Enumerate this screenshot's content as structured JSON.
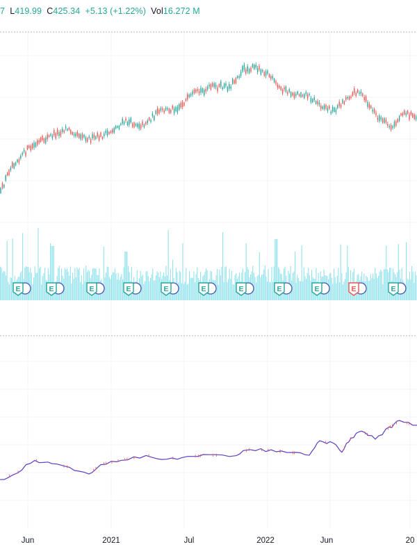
{
  "ohlc_legend": {
    "o_fragment": "7",
    "low_label": "L",
    "low_value": "419.99",
    "close_label": "C",
    "close_value": "425.34",
    "change": "+5.13",
    "change_pct": "(+1.22%)",
    "volume_label": "Vol",
    "volume_value": "16.272",
    "volume_unit": "M"
  },
  "x_axis_labels": [
    "Jun",
    "2021",
    "Jul",
    "2022",
    "Jun",
    "20"
  ],
  "earnings_badges": [
    {
      "icon": "earnings-icon",
      "letter": "E",
      "color": "#26a69a"
    },
    {
      "icon": "earnings-icon",
      "letter": "E",
      "color": "#26a69a"
    },
    {
      "icon": "earnings-icon",
      "letter": "E",
      "color": "#26a69a"
    },
    {
      "icon": "earnings-icon",
      "letter": "E",
      "color": "#26a69a"
    },
    {
      "icon": "earnings-icon",
      "letter": "E",
      "color": "#26a69a"
    },
    {
      "icon": "earnings-icon",
      "letter": "E",
      "color": "#26a69a"
    },
    {
      "icon": "earnings-icon",
      "letter": "E",
      "color": "#26a69a"
    },
    {
      "icon": "earnings-icon",
      "letter": "E",
      "color": "#26a69a"
    },
    {
      "icon": "earnings-icon",
      "letter": "E",
      "color": "#26a69a"
    },
    {
      "icon": "earnings-icon",
      "letter": "E",
      "color": "#ef5350"
    },
    {
      "icon": "earnings-icon",
      "letter": "E",
      "color": "#26a69a"
    }
  ],
  "colors": {
    "up": "#26a69a",
    "down": "#ef5350",
    "volume": "#80deea",
    "compare_line": "#5b3cc4",
    "grid": "#f0f3fa"
  }
}
